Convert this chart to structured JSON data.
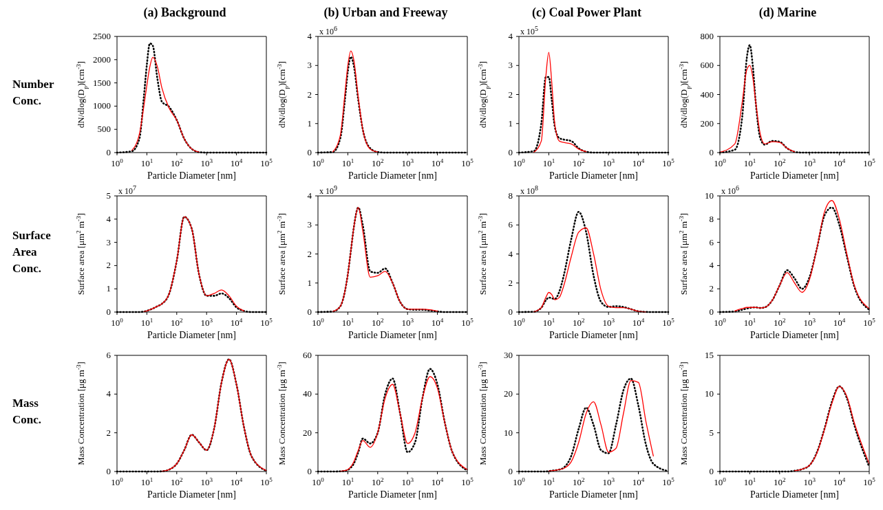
{
  "chart_data": [
    {
      "type": "other",
      "title": "Number Conc."
    },
    {
      "type": "line",
      "title": "(a) Background",
      "xlabel": "Particle Diameter [nm]",
      "ylabel": "dN/dlog(D$_{p}$)[cm$^{-3}$]",
      "xlim": [
        1,
        100000
      ],
      "xticks": [
        {
          "value": 1,
          "label": "10$^{0}$"
        },
        {
          "value": 10,
          "label": "10$^{1}$"
        },
        {
          "value": 100,
          "label": "10$^{2}$"
        },
        {
          "value": 1000,
          "label": "10$^{3}$"
        },
        {
          "value": 10000,
          "label": "10$^{4}$"
        },
        {
          "value": 100000,
          "label": "10$^{5}$"
        }
      ],
      "log": "x",
      "ylim": [
        0,
        2500
      ],
      "yticks": [
        0,
        500,
        1000,
        1500,
        2000,
        2500
      ],
      "x": [
        1,
        3.16,
        5.62,
        7.94,
        10,
        12.6,
        15.8,
        22.4,
        31.6,
        56.2,
        100,
        178,
        316,
        562,
        1000,
        1778,
        3162,
        5623,
        10000,
        17783,
        31623,
        100000
      ],
      "series": [
        {
          "color": "#ff0000",
          "line_style": "solid",
          "values": [
            null,
            50,
            400,
            1000,
            1450,
            1850,
            2050,
            1850,
            1400,
            950,
            700,
            300,
            80,
            10,
            null,
            null,
            null,
            null,
            null,
            null,
            null,
            null
          ]
        },
        {
          "color": "#000000",
          "line_style": "dotted",
          "values": [
            0,
            30,
            300,
            1200,
            1900,
            2350,
            2300,
            1600,
            1100,
            980,
            700,
            300,
            80,
            10,
            0,
            0,
            0,
            0,
            0,
            0,
            0,
            0
          ]
        }
      ]
    },
    {
      "type": "line",
      "title": "(b) Urban and Freeway",
      "xlabel": "Particle Diameter [nm]",
      "ylabel": "dN/dlog(D$_{p}$)[cm$^{-3}$]",
      "annotations": [
        "x 10$^{6}$"
      ],
      "xlim": [
        1,
        100000
      ],
      "xticks": [
        {
          "value": 1,
          "label": "10$^{0}$"
        },
        {
          "value": 10,
          "label": "10$^{1}$"
        },
        {
          "value": 100,
          "label": "10$^{2}$"
        },
        {
          "value": 1000,
          "label": "10$^{3}$"
        },
        {
          "value": 10000,
          "label": "10$^{4}$"
        },
        {
          "value": 100000,
          "label": "10$^{5}$"
        }
      ],
      "log": "x",
      "ylim": [
        0,
        4
      ],
      "yticks": [
        0,
        1,
        2,
        3,
        4
      ],
      "x": [
        1,
        3.16,
        5.62,
        7.94,
        10,
        12.6,
        15.8,
        22.4,
        31.6,
        56.2,
        100,
        178,
        316,
        562,
        1000,
        1778,
        3162,
        5623,
        10000,
        17783,
        31623,
        100000
      ],
      "series": [
        {
          "color": "#ff0000",
          "line_style": "solid",
          "values": [
            null,
            0.03,
            0.6,
            2.0,
            3.0,
            3.5,
            3.2,
            1.9,
            0.8,
            0.12,
            0.02,
            null,
            null,
            null,
            null,
            null,
            null,
            null,
            null,
            null,
            null,
            null
          ]
        },
        {
          "color": "#000000",
          "line_style": "dotted",
          "values": [
            0,
            0.02,
            0.5,
            1.8,
            2.8,
            3.3,
            3.0,
            1.8,
            0.8,
            0.15,
            0.02,
            0,
            0,
            0,
            0,
            0,
            0,
            0,
            0,
            0,
            0,
            0
          ]
        }
      ]
    },
    {
      "type": "line",
      "title": "(c) Coal Power Plant",
      "xlabel": "Particle Diameter [nm]",
      "ylabel": "dN/dlog(D$_{p}$)[cm$^{-3}$]",
      "annotations": [
        "x 10$^{5}$"
      ],
      "xlim": [
        1,
        100000
      ],
      "xticks": [
        {
          "value": 1,
          "label": "10$^{0}$"
        },
        {
          "value": 10,
          "label": "10$^{1}$"
        },
        {
          "value": 100,
          "label": "10$^{2}$"
        },
        {
          "value": 1000,
          "label": "10$^{3}$"
        },
        {
          "value": 10000,
          "label": "10$^{4}$"
        },
        {
          "value": 100000,
          "label": "10$^{5}$"
        }
      ],
      "log": "x",
      "ylim": [
        0,
        4
      ],
      "yticks": [
        0,
        1,
        2,
        3,
        4
      ],
      "x": [
        1,
        3.16,
        5.62,
        7.94,
        10,
        12.6,
        15.8,
        22.4,
        31.6,
        56.2,
        100,
        178,
        316,
        562,
        1000,
        1778,
        3162,
        5623,
        10000,
        17783,
        31623,
        100000
      ],
      "series": [
        {
          "color": "#ff0000",
          "line_style": "solid",
          "values": [
            null,
            0.01,
            0.4,
            2.6,
            3.45,
            2.4,
            1.0,
            0.4,
            0.35,
            0.3,
            0.12,
            0.03,
            null,
            null,
            null,
            null,
            null,
            null,
            null,
            null,
            null,
            null
          ]
        },
        {
          "color": "#000000",
          "line_style": "dotted",
          "values": [
            0,
            0.05,
            1.0,
            2.6,
            2.6,
            1.8,
            0.9,
            0.5,
            0.45,
            0.4,
            0.15,
            0.03,
            0,
            0,
            0,
            0,
            0,
            0,
            0,
            0,
            0,
            0
          ]
        }
      ]
    },
    {
      "type": "line",
      "title": "(d) Marine",
      "xlabel": "Particle Diameter [nm]",
      "ylabel": "dN/dlog(D$_{p}$)[cm$^{-3}$]",
      "xlim": [
        1,
        100000
      ],
      "xticks": [
        {
          "value": 1,
          "label": "10$^{0}$"
        },
        {
          "value": 10,
          "label": "10$^{1}$"
        },
        {
          "value": 100,
          "label": "10$^{2}$"
        },
        {
          "value": 1000,
          "label": "10$^{3}$"
        },
        {
          "value": 10000,
          "label": "10$^{4}$"
        },
        {
          "value": 100000,
          "label": "10$^{5}$"
        }
      ],
      "log": "x",
      "ylim": [
        0,
        800
      ],
      "yticks": [
        0,
        200,
        400,
        600,
        800
      ],
      "x": [
        1,
        3.16,
        5.62,
        7.94,
        10,
        12.6,
        15.8,
        22.4,
        31.6,
        56.2,
        100,
        178,
        316,
        562,
        1000,
        1778,
        3162,
        5623,
        10000,
        17783,
        31623,
        100000
      ],
      "series": [
        {
          "color": "#ff0000",
          "line_style": "solid",
          "values": [
            2,
            60,
            350,
            570,
            600,
            520,
            350,
            130,
            60,
            75,
            70,
            30,
            5,
            null,
            null,
            null,
            null,
            null,
            null,
            null,
            null,
            null
          ]
        },
        {
          "color": "#000000",
          "line_style": "dotted",
          "values": [
            0,
            20,
            250,
            650,
            740,
            600,
            350,
            100,
            55,
            80,
            75,
            30,
            5,
            0,
            0,
            0,
            0,
            0,
            0,
            0,
            0,
            0
          ]
        }
      ]
    },
    {
      "type": "other",
      "title": "Surface Area Conc."
    },
    {
      "type": "line",
      "xlabel": "Particle Diameter [nm]",
      "ylabel": "Surface area [μm$^{2}$ m$^{-3}$]",
      "annotations": [
        "x 10$^{7}$"
      ],
      "xlim": [
        1,
        100000
      ],
      "xticks": [
        {
          "value": 1,
          "label": "10$^{0}$"
        },
        {
          "value": 10,
          "label": "10$^{1}$"
        },
        {
          "value": 100,
          "label": "10$^{2}$"
        },
        {
          "value": 1000,
          "label": "10$^{3}$"
        },
        {
          "value": 10000,
          "label": "10$^{4}$"
        },
        {
          "value": 100000,
          "label": "10$^{5}$"
        }
      ],
      "log": "x",
      "ylim": [
        0,
        5
      ],
      "yticks": [
        0,
        1,
        2,
        3,
        4,
        5
      ],
      "x": [
        1,
        3.16,
        5.62,
        7.94,
        10,
        12.6,
        15.8,
        22.4,
        31.6,
        56.2,
        100,
        178,
        316,
        562,
        1000,
        1778,
        3162,
        5623,
        10000,
        17783,
        31623,
        100000
      ],
      "series": [
        {
          "color": "#ff0000",
          "line_style": "solid",
          "values": [
            null,
            null,
            null,
            0.02,
            0.05,
            0.1,
            0.15,
            0.25,
            0.35,
            0.8,
            2.2,
            4.1,
            3.6,
            1.6,
            0.7,
            0.8,
            0.95,
            0.7,
            0.25,
            0.05,
            null,
            null
          ]
        },
        {
          "color": "#000000",
          "line_style": "dotted",
          "values": [
            0,
            0,
            0,
            0.02,
            0.05,
            0.1,
            0.15,
            0.25,
            0.35,
            0.8,
            2.2,
            4.1,
            3.6,
            1.6,
            0.7,
            0.7,
            0.8,
            0.6,
            0.2,
            0.05,
            0,
            0
          ]
        }
      ]
    },
    {
      "type": "line",
      "xlabel": "Particle Diameter [nm]",
      "ylabel": "Surface area [μm$^{2}$ m$^{-3}$]",
      "annotations": [
        "x 10$^{9}$"
      ],
      "xlim": [
        1,
        100000
      ],
      "xticks": [
        {
          "value": 1,
          "label": "10$^{0}$"
        },
        {
          "value": 10,
          "label": "10$^{1}$"
        },
        {
          "value": 100,
          "label": "10$^{2}$"
        },
        {
          "value": 1000,
          "label": "10$^{3}$"
        },
        {
          "value": 10000,
          "label": "10$^{4}$"
        },
        {
          "value": 100000,
          "label": "10$^{5}$"
        }
      ],
      "log": "x",
      "ylim": [
        0,
        4
      ],
      "yticks": [
        0,
        1,
        2,
        3,
        4
      ],
      "x": [
        1,
        3.16,
        5.62,
        7.94,
        10,
        12.6,
        15.8,
        22.4,
        31.6,
        56.2,
        100,
        178,
        316,
        562,
        1000,
        1778,
        3162,
        5623,
        10000,
        17783,
        31623,
        100000
      ],
      "series": [
        {
          "color": "#ff0000",
          "line_style": "solid",
          "values": [
            null,
            0.02,
            0.2,
            0.7,
            1.3,
            2.1,
            2.9,
            3.6,
            2.8,
            1.2,
            1.25,
            1.4,
            1.0,
            0.35,
            0.1,
            0.1,
            0.1,
            0.08,
            0.03,
            null,
            null,
            null
          ]
        },
        {
          "color": "#000000",
          "line_style": "dotted",
          "values": [
            0,
            0.02,
            0.2,
            0.7,
            1.3,
            2.1,
            2.9,
            3.6,
            3.0,
            1.4,
            1.35,
            1.5,
            1.0,
            0.35,
            0.1,
            0.08,
            0.08,
            0.05,
            0.02,
            0,
            0,
            0
          ]
        }
      ]
    },
    {
      "type": "line",
      "xlabel": "Particle Diameter [nm]",
      "ylabel": "Surface area [μm$^{2}$ m$^{-3}$]",
      "annotations": [
        "x 10$^{8}$"
      ],
      "xlim": [
        1,
        100000
      ],
      "xticks": [
        {
          "value": 1,
          "label": "10$^{0}$"
        },
        {
          "value": 10,
          "label": "10$^{1}$"
        },
        {
          "value": 100,
          "label": "10$^{2}$"
        },
        {
          "value": 1000,
          "label": "10$^{3}$"
        },
        {
          "value": 10000,
          "label": "10$^{4}$"
        },
        {
          "value": 100000,
          "label": "10$^{5}$"
        }
      ],
      "log": "x",
      "ylim": [
        0,
        8
      ],
      "yticks": [
        0,
        2,
        4,
        6,
        8
      ],
      "x": [
        1,
        3.16,
        5.62,
        7.94,
        10,
        12.6,
        15.8,
        22.4,
        31.6,
        56.2,
        100,
        178,
        316,
        562,
        1000,
        1778,
        3162,
        5623,
        10000,
        17783,
        31623,
        100000
      ],
      "series": [
        {
          "color": "#ff0000",
          "line_style": "solid",
          "values": [
            null,
            0.02,
            0.3,
            1.0,
            1.35,
            1.2,
            0.85,
            1.0,
            1.8,
            3.8,
            5.5,
            5.8,
            4.0,
            1.5,
            0.4,
            0.3,
            0.3,
            0.2,
            0.05,
            0.01,
            null,
            null
          ]
        },
        {
          "color": "#000000",
          "line_style": "dotted",
          "values": [
            0,
            0.02,
            0.3,
            0.8,
            1.0,
            0.95,
            0.9,
            1.4,
            2.5,
            5.0,
            6.9,
            5.5,
            2.5,
            0.7,
            0.35,
            0.4,
            0.35,
            0.2,
            0.05,
            0.01,
            0,
            0
          ]
        }
      ]
    },
    {
      "type": "line",
      "xlabel": "Particle Diameter [nm]",
      "ylabel": "Surface area [μm$^{2}$ m$^{-3}$]",
      "annotations": [
        "x 10$^{6}$"
      ],
      "xlim": [
        1,
        100000
      ],
      "xticks": [
        {
          "value": 1,
          "label": "10$^{0}$"
        },
        {
          "value": 10,
          "label": "10$^{1}$"
        },
        {
          "value": 100,
          "label": "10$^{2}$"
        },
        {
          "value": 1000,
          "label": "10$^{3}$"
        },
        {
          "value": 10000,
          "label": "10$^{4}$"
        },
        {
          "value": 100000,
          "label": "10$^{5}$"
        }
      ],
      "log": "x",
      "ylim": [
        0,
        10
      ],
      "yticks": [
        0,
        2,
        4,
        6,
        8,
        10
      ],
      "x": [
        1,
        3.16,
        5.62,
        7.94,
        10,
        12.6,
        15.8,
        22.4,
        31.6,
        56.2,
        100,
        178,
        316,
        562,
        1000,
        1778,
        3162,
        5623,
        10000,
        17783,
        31623,
        100000
      ],
      "series": [
        {
          "color": "#ff0000",
          "line_style": "solid",
          "values": [
            null,
            0.1,
            0.3,
            0.4,
            0.4,
            0.4,
            0.4,
            0.35,
            0.4,
            1.0,
            2.3,
            3.4,
            2.5,
            1.7,
            2.8,
            5.5,
            8.6,
            9.6,
            8.0,
            5.0,
            2.3,
            0.3
          ]
        },
        {
          "color": "#000000",
          "line_style": "dotted",
          "values": [
            0,
            0.05,
            0.2,
            0.3,
            0.35,
            0.4,
            0.4,
            0.35,
            0.4,
            1.0,
            2.3,
            3.6,
            2.9,
            2.0,
            3.0,
            5.5,
            8.3,
            9.0,
            7.5,
            4.8,
            2.2,
            0.2
          ]
        }
      ]
    },
    {
      "type": "other",
      "title": "Mass Conc."
    },
    {
      "type": "line",
      "xlabel": "Particle Diameter [nm]",
      "ylabel": "Mass Concentration [μg m$^{-3}$]",
      "xlim": [
        1,
        100000
      ],
      "xticks": [
        {
          "value": 1,
          "label": "10$^{0}$"
        },
        {
          "value": 10,
          "label": "10$^{1}$"
        },
        {
          "value": 100,
          "label": "10$^{2}$"
        },
        {
          "value": 1000,
          "label": "10$^{3}$"
        },
        {
          "value": 10000,
          "label": "10$^{4}$"
        },
        {
          "value": 100000,
          "label": "10$^{5}$"
        }
      ],
      "log": "x",
      "ylim": [
        0,
        6
      ],
      "yticks": [
        0,
        2,
        4,
        6
      ],
      "x": [
        1,
        3.16,
        5.62,
        7.94,
        10,
        12.6,
        15.8,
        22.4,
        31.6,
        56.2,
        100,
        178,
        316,
        562,
        1000,
        1778,
        3162,
        5623,
        10000,
        17783,
        31623,
        100000
      ],
      "series": [
        {
          "color": "#ff0000",
          "line_style": "solid",
          "values": [
            null,
            null,
            null,
            null,
            null,
            null,
            null,
            null,
            0.01,
            0.1,
            0.4,
            1.1,
            1.9,
            1.5,
            1.1,
            2.2,
            4.6,
            5.8,
            4.5,
            2.3,
            0.8,
            0.05
          ]
        },
        {
          "color": "#000000",
          "line_style": "dotted",
          "values": [
            0,
            0,
            0,
            0,
            0,
            0,
            0,
            0,
            0.01,
            0.1,
            0.4,
            1.1,
            1.9,
            1.5,
            1.1,
            2.2,
            4.6,
            5.8,
            4.5,
            2.3,
            0.8,
            0.03
          ]
        }
      ]
    },
    {
      "type": "line",
      "xlabel": "Particle Diameter [nm]",
      "ylabel": "Mass Concentration [μg m$^{-3}$]",
      "xlim": [
        1,
        100000
      ],
      "xticks": [
        {
          "value": 1,
          "label": "10$^{0}$"
        },
        {
          "value": 10,
          "label": "10$^{1}$"
        },
        {
          "value": 100,
          "label": "10$^{2}$"
        },
        {
          "value": 1000,
          "label": "10$^{3}$"
        },
        {
          "value": 10000,
          "label": "10$^{4}$"
        },
        {
          "value": 100000,
          "label": "10$^{5}$"
        }
      ],
      "log": "x",
      "ylim": [
        0,
        60
      ],
      "yticks": [
        0,
        20,
        40,
        60
      ],
      "x": [
        1,
        3.16,
        5.62,
        7.94,
        10,
        12.6,
        15.8,
        22.4,
        31.6,
        56.2,
        100,
        178,
        316,
        562,
        1000,
        1778,
        3162,
        5623,
        10000,
        17783,
        31623,
        100000
      ],
      "series": [
        {
          "color": "#ff0000",
          "line_style": "solid",
          "values": [
            null,
            null,
            0.1,
            0.5,
            1,
            2.5,
            5,
            11,
            16,
            12.5,
            20,
            38,
            45,
            30,
            14.5,
            20,
            38,
            49,
            43,
            25,
            10,
            1
          ]
        },
        {
          "color": "#000000",
          "line_style": "dotted",
          "values": [
            0,
            0,
            0.1,
            0.3,
            0.8,
            2,
            4,
            10,
            17,
            14.5,
            20,
            40,
            48,
            30,
            10,
            15,
            38,
            53,
            45,
            25,
            10,
            0.5
          ]
        }
      ]
    },
    {
      "type": "line",
      "xlabel": "Particle Diameter [nm]",
      "ylabel": "Mass Concentration [μg m$^{-3}$]",
      "xlim": [
        1,
        100000
      ],
      "xticks": [
        {
          "value": 1,
          "label": "10$^{0}$"
        },
        {
          "value": 10,
          "label": "10$^{1}$"
        },
        {
          "value": 100,
          "label": "10$^{2}$"
        },
        {
          "value": 1000,
          "label": "10$^{3}$"
        },
        {
          "value": 10000,
          "label": "10$^{4}$"
        },
        {
          "value": 100000,
          "label": "10$^{5}$"
        }
      ],
      "log": "x",
      "ylim": [
        0,
        30
      ],
      "yticks": [
        0,
        10,
        20,
        30
      ],
      "x": [
        1,
        3.16,
        5.62,
        7.94,
        10,
        12.6,
        15.8,
        22.4,
        31.6,
        56.2,
        100,
        178,
        316,
        562,
        1000,
        1778,
        3162,
        5623,
        10000,
        17783,
        31623,
        100000
      ],
      "series": [
        {
          "color": "#ff0000",
          "line_style": "solid",
          "values": [
            null,
            null,
            null,
            null,
            0.1,
            0.2,
            0.3,
            0.5,
            0.8,
            2.5,
            7.5,
            15,
            18,
            12,
            5,
            6,
            15,
            23.5,
            23,
            13,
            4,
            null
          ]
        },
        {
          "color": "#000000",
          "line_style": "dotted",
          "values": [
            0,
            0,
            0,
            0,
            0.1,
            0.2,
            0.3,
            0.5,
            1,
            4,
            11,
            16.5,
            12,
            5.5,
            4.7,
            12,
            21,
            24,
            17,
            7,
            2,
            0.1
          ]
        }
      ]
    },
    {
      "type": "line",
      "xlabel": "Particle Diameter [nm]",
      "ylabel": "Mass Concentration [μg m$^{-3}$]",
      "xlim": [
        1,
        100000
      ],
      "xticks": [
        {
          "value": 1,
          "label": "10$^{0}$"
        },
        {
          "value": 10,
          "label": "10$^{1}$"
        },
        {
          "value": 100,
          "label": "10$^{2}$"
        },
        {
          "value": 1000,
          "label": "10$^{3}$"
        },
        {
          "value": 10000,
          "label": "10$^{4}$"
        },
        {
          "value": 100000,
          "label": "10$^{5}$"
        }
      ],
      "log": "x",
      "ylim": [
        0,
        15
      ],
      "yticks": [
        0,
        5,
        10,
        15
      ],
      "x": [
        1,
        3.16,
        5.62,
        7.94,
        10,
        12.6,
        15.8,
        22.4,
        31.6,
        56.2,
        100,
        178,
        316,
        562,
        1000,
        1778,
        3162,
        5623,
        10000,
        17783,
        31623,
        100000
      ],
      "series": [
        {
          "color": "#ff0000",
          "line_style": "solid",
          "values": [
            null,
            null,
            null,
            null,
            null,
            null,
            null,
            null,
            null,
            null,
            null,
            null,
            0.1,
            0.3,
            0.8,
            2.4,
            5.4,
            8.8,
            11,
            9.7,
            6.3,
            1.0
          ]
        },
        {
          "color": "#000000",
          "line_style": "dotted",
          "values": [
            0,
            0,
            0,
            0,
            0,
            0,
            0,
            0,
            0,
            0,
            0,
            0,
            0.1,
            0.3,
            0.8,
            2.5,
            5.5,
            9,
            11,
            9.5,
            6,
            0.6
          ]
        }
      ]
    }
  ]
}
